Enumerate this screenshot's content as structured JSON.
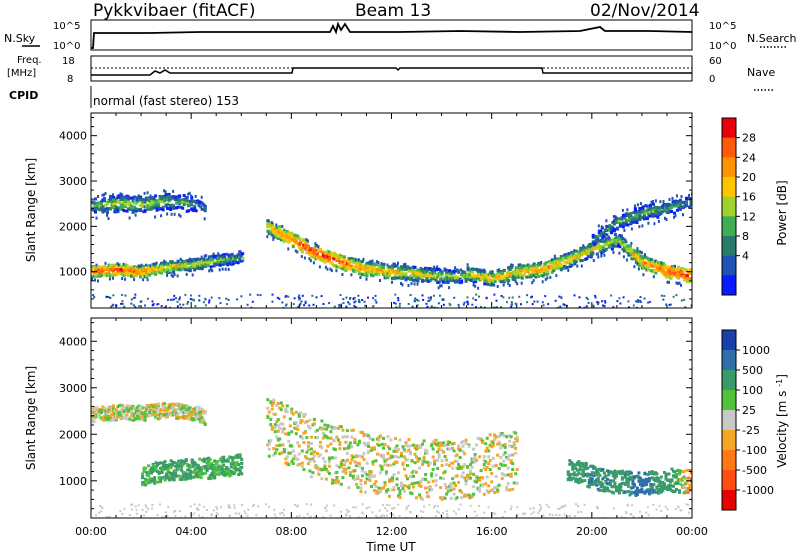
{
  "header": {
    "station": "Pykkvibaer (fitACF)",
    "beam": "Beam 13",
    "date": "02/Nov/2014"
  },
  "noise_panel": {
    "left_label": "N.Sky",
    "right_label": "N.Search",
    "left_ticks": [
      "10^5",
      "10^0"
    ],
    "right_ticks": [
      "10^5",
      "10^0"
    ]
  },
  "freq_panel": {
    "left_label_1": "Freq.",
    "left_label_2": "[MHz]",
    "right_label": "Nave",
    "left_ticks": [
      "18",
      "8"
    ],
    "right_ticks": [
      "60",
      "0"
    ]
  },
  "cpid_panel": {
    "label": "CPID",
    "text": "normal (fast stereo) 153"
  },
  "x_axis": {
    "label": "Time UT",
    "ticks": [
      "00:00",
      "04:00",
      "08:00",
      "12:00",
      "16:00",
      "20:00",
      "00:00"
    ]
  },
  "power_colorbar": {
    "title": "Power [dB]",
    "ticks": [
      "28",
      "24",
      "20",
      "16",
      "12",
      "8",
      "4"
    ],
    "colors": [
      "#e8000b",
      "#ff5a0a",
      "#ff9400",
      "#ffc400",
      "#9fd22a",
      "#3fae52",
      "#2a7a6c",
      "#1f52b4",
      "#0a1bff"
    ]
  },
  "velocity_colorbar": {
    "title": "Velocity [m s^-1]",
    "ticks": [
      "1000",
      "500",
      "100",
      "25",
      "-25",
      "-100",
      "-500",
      "-1000"
    ],
    "colors": [
      "#1a3fa8",
      "#2e6fa8",
      "#3a9b6a",
      "#52c23a",
      "#c8c8c8",
      "#f5a623",
      "#ff7a14",
      "#ff4d14",
      "#e60000"
    ]
  },
  "chart_data": [
    {
      "type": "heatmap",
      "title": "Power",
      "ylabel": "Slant Range [km]",
      "ylim": [
        200,
        4500
      ],
      "xlim": [
        0,
        24
      ],
      "y_ticks": [
        "1000",
        "2000",
        "3000",
        "4000"
      ],
      "colorbar_label": "Power [dB]",
      "zlim": [
        0,
        30
      ],
      "features": [
        {
          "name": "band-a",
          "t": [
            0,
            1,
            2,
            3,
            4,
            4.5
          ],
          "range": [
            2450,
            2500,
            2480,
            2550,
            2500,
            2400
          ],
          "width": 180,
          "power": [
            12,
            16,
            16,
            14,
            12,
            8
          ]
        },
        {
          "name": "band-b",
          "t": [
            0,
            1,
            2,
            3,
            4,
            5,
            6
          ],
          "range": [
            1000,
            1050,
            1000,
            1100,
            1150,
            1250,
            1300
          ],
          "width": 120,
          "power": [
            26,
            26,
            24,
            20,
            18,
            16,
            12
          ]
        },
        {
          "name": "band-c",
          "t": [
            7,
            8,
            9,
            10,
            11,
            12,
            13,
            14,
            15
          ],
          "range": [
            2000,
            1700,
            1400,
            1200,
            1050,
            1000,
            950,
            900,
            900
          ],
          "width": 150,
          "power": [
            20,
            26,
            28,
            26,
            22,
            20,
            18,
            16,
            16
          ]
        },
        {
          "name": "band-d",
          "t": [
            15,
            16,
            17,
            18,
            19,
            20,
            21,
            22,
            23,
            24
          ],
          "range": [
            950,
            850,
            1000,
            1050,
            1250,
            1500,
            1700,
            1200,
            1000,
            900
          ],
          "width": 150,
          "power": [
            18,
            20,
            20,
            22,
            20,
            18,
            16,
            22,
            26,
            28
          ]
        },
        {
          "name": "band-e",
          "t": [
            20,
            21,
            22,
            23,
            24
          ],
          "range": [
            1700,
            2100,
            2300,
            2400,
            2550
          ],
          "width": 160,
          "power": [
            10,
            12,
            14,
            12,
            10
          ]
        }
      ]
    },
    {
      "type": "heatmap",
      "title": "Velocity",
      "ylabel": "Slant Range [km]",
      "ylim": [
        200,
        4500
      ],
      "xlim": [
        0,
        24
      ],
      "y_ticks": [
        "1000",
        "2000",
        "3000",
        "4000"
      ],
      "colorbar_label": "Velocity [m s^-1]",
      "zlim": [
        -1000,
        1000
      ],
      "features": [
        {
          "name": "band-a",
          "t": [
            0,
            1,
            2,
            3,
            4,
            4.5
          ],
          "range": [
            2450,
            2500,
            2480,
            2550,
            2500,
            2400
          ],
          "width": 160,
          "velocity": [
            0,
            0,
            0,
            0,
            0,
            0
          ]
        },
        {
          "name": "band-b",
          "t": [
            2,
            3,
            4,
            5,
            6
          ],
          "range": [
            1150,
            1250,
            1300,
            1300,
            1400
          ],
          "width": 220,
          "velocity": [
            100,
            150,
            150,
            100,
            150
          ]
        },
        {
          "name": "band-c",
          "t": [
            7,
            9,
            11,
            13,
            15,
            17
          ],
          "range": [
            2200,
            1700,
            1400,
            1250,
            1300,
            1500
          ],
          "width": 650,
          "velocity": [
            0,
            0,
            0,
            0,
            0,
            0
          ]
        },
        {
          "name": "band-d",
          "t": [
            19,
            20,
            21,
            22,
            23,
            24
          ],
          "range": [
            1300,
            1100,
            1000,
            950,
            1050,
            1000
          ],
          "width": 250,
          "velocity": [
            300,
            500,
            400,
            600,
            300,
            -200
          ]
        }
      ]
    }
  ]
}
